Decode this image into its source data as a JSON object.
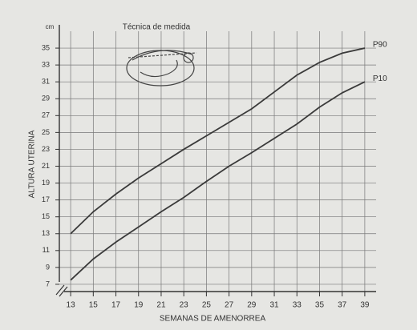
{
  "chart_data": {
    "type": "line",
    "title": "Técnica de medida",
    "xlabel": "SEMANAS DE AMENORREA",
    "ylabel": "ALTURA UTERINA",
    "yunit": "cm",
    "x": [
      13,
      15,
      17,
      19,
      21,
      23,
      25,
      27,
      29,
      31,
      33,
      35,
      37,
      39
    ],
    "series": [
      {
        "name": "P90",
        "color": "#3a3a3a",
        "values": [
          13,
          15.6,
          17.7,
          19.6,
          21.3,
          23,
          24.6,
          26.2,
          27.8,
          29.8,
          31.8,
          33.3,
          34.4,
          35
        ]
      },
      {
        "name": "P10",
        "color": "#3a3a3a",
        "values": [
          7.5,
          10,
          12,
          13.8,
          15.6,
          17.3,
          19.2,
          21,
          22.6,
          24.3,
          26,
          28,
          29.7,
          31
        ]
      }
    ],
    "xlim": [
      12,
      40
    ],
    "xticks": [
      13,
      15,
      17,
      19,
      21,
      23,
      25,
      27,
      29,
      31,
      33,
      35,
      37,
      39
    ],
    "ylim": [
      5,
      37
    ],
    "yticks": [
      7,
      9,
      11,
      13,
      15,
      17,
      19,
      21,
      23,
      25,
      27,
      29,
      31,
      33,
      35
    ],
    "grid": true
  }
}
